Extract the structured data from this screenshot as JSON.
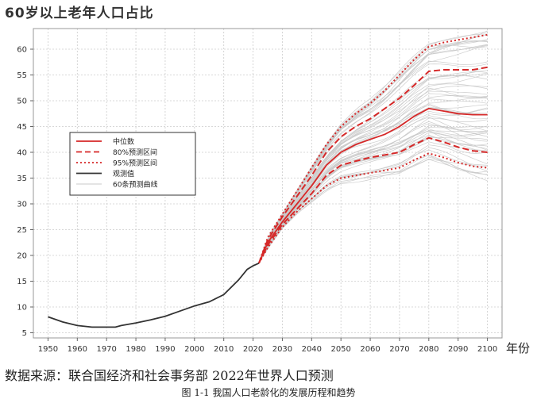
{
  "title": "60岁以上老年人口占比",
  "source_note": "数据来源：联合国经济和社会事务部 2022年世界人口预测",
  "caption": "图 1-1 我国人口老龄化的发展历程和趋势",
  "colors": {
    "observed": "#333333",
    "median": "#d62828",
    "pi80": "#d62828",
    "pi95": "#d62828",
    "traj": "#c8c8c8",
    "grid": "#cccccc",
    "frame": "#999999"
  },
  "chart_data": {
    "type": "line",
    "title": "60岁以上老年人口占比",
    "xlabel": "年份",
    "ylabel": "",
    "xlim": [
      1945,
      2105
    ],
    "ylim": [
      4,
      64
    ],
    "xticks": [
      1950,
      1960,
      1970,
      1980,
      1990,
      2000,
      2010,
      2020,
      2030,
      2040,
      2050,
      2060,
      2070,
      2080,
      2090,
      2100
    ],
    "yticks": [
      5,
      10,
      15,
      20,
      25,
      30,
      35,
      40,
      45,
      50,
      55,
      60
    ],
    "grid": true,
    "legend_position": "upper-left",
    "legend": [
      {
        "label": "中位数",
        "style": "solid",
        "color": "#d62828"
      },
      {
        "label": "80%预测区间",
        "style": "dashed",
        "color": "#d62828"
      },
      {
        "label": "95%预测区间",
        "style": "dotted",
        "color": "#d62828"
      },
      {
        "label": "观测值",
        "style": "solid",
        "color": "#333333"
      },
      {
        "label": "60条预测曲线",
        "style": "solid",
        "color": "#c8c8c8"
      }
    ],
    "series": [
      {
        "name": "观测值",
        "x": [
          1950,
          1955,
          1960,
          1965,
          1970,
          1973,
          1975,
          1980,
          1985,
          1990,
          1995,
          2000,
          2005,
          2010,
          2015,
          2018,
          2020,
          2022
        ],
        "y": [
          8.1,
          7.1,
          6.4,
          6.1,
          6.1,
          6.1,
          6.4,
          6.9,
          7.5,
          8.2,
          9.2,
          10.2,
          11.0,
          12.4,
          15.2,
          17.3,
          18.0,
          18.5
        ]
      },
      {
        "name": "中位数",
        "x": [
          2022,
          2025,
          2030,
          2035,
          2040,
          2045,
          2050,
          2055,
          2060,
          2065,
          2070,
          2075,
          2080,
          2085,
          2090,
          2095,
          2100
        ],
        "y": [
          18.5,
          22.5,
          26.5,
          30.0,
          33.5,
          37.5,
          40.0,
          41.5,
          42.5,
          43.5,
          45.0,
          47.0,
          48.5,
          48.0,
          47.5,
          47.3,
          47.3
        ]
      },
      {
        "name": "80%预测区间上限",
        "x": [
          2022,
          2025,
          2030,
          2035,
          2040,
          2045,
          2050,
          2055,
          2060,
          2065,
          2070,
          2075,
          2080,
          2085,
          2090,
          2095,
          2100
        ],
        "y": [
          18.5,
          23.0,
          27.5,
          31.5,
          35.5,
          40.0,
          43.0,
          45.0,
          46.5,
          48.5,
          50.5,
          53.0,
          55.7,
          56.0,
          56.0,
          56.0,
          56.5
        ]
      },
      {
        "name": "80%预测区间下限",
        "x": [
          2022,
          2025,
          2030,
          2035,
          2040,
          2045,
          2050,
          2055,
          2060,
          2065,
          2070,
          2075,
          2080,
          2085,
          2090,
          2095,
          2100
        ],
        "y": [
          18.5,
          22.0,
          26.0,
          29.0,
          32.0,
          35.5,
          37.5,
          38.3,
          39.0,
          39.5,
          40.0,
          41.5,
          42.8,
          42.0,
          41.0,
          40.3,
          40.0
        ]
      },
      {
        "name": "95%预测区间上限",
        "x": [
          2022,
          2025,
          2030,
          2035,
          2040,
          2045,
          2050,
          2055,
          2060,
          2065,
          2070,
          2075,
          2080,
          2085,
          2090,
          2095,
          2100
        ],
        "y": [
          18.5,
          23.5,
          28.0,
          32.5,
          37.0,
          41.5,
          45.0,
          47.5,
          49.5,
          52.0,
          55.0,
          58.0,
          60.5,
          61.3,
          61.8,
          62.3,
          62.8
        ]
      },
      {
        "name": "95%预测区间下限",
        "x": [
          2022,
          2025,
          2030,
          2035,
          2040,
          2045,
          2050,
          2055,
          2060,
          2065,
          2070,
          2075,
          2080,
          2085,
          2090,
          2095,
          2100
        ],
        "y": [
          18.5,
          21.5,
          25.5,
          28.5,
          31.0,
          33.5,
          35.0,
          35.5,
          36.0,
          36.5,
          37.0,
          38.5,
          39.8,
          39.0,
          38.0,
          37.3,
          37.0
        ]
      }
    ],
    "trajectories_count": 60
  }
}
